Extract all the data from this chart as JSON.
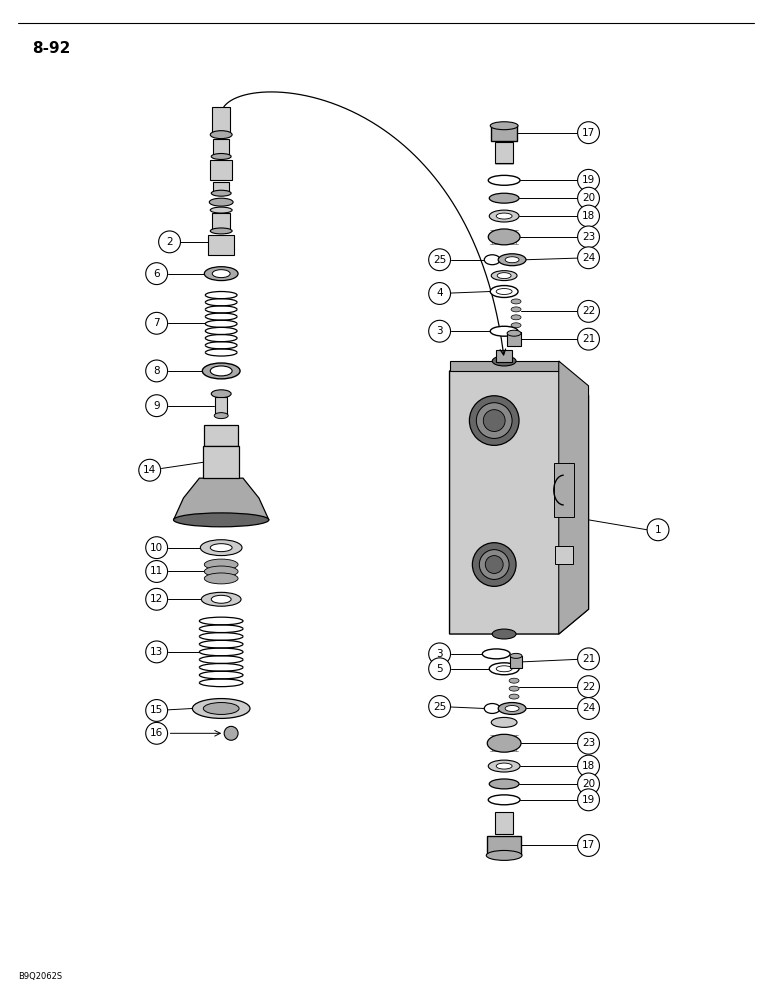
{
  "page_label": "8-92",
  "image_code": "B9Q2062S",
  "fig_width": 7.72,
  "fig_height": 10.0,
  "dpi": 100
}
